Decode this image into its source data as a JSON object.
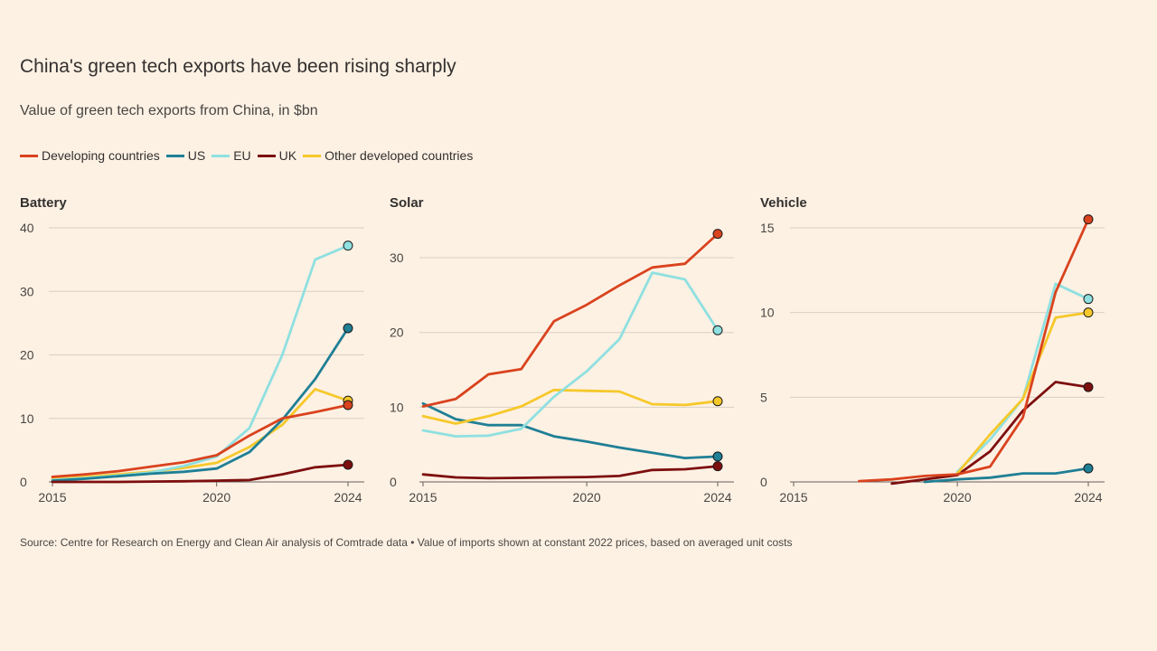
{
  "title": "China's green tech exports have been rising sharply",
  "subtitle": "Value of green tech exports from China, in $bn",
  "source": "Source: Centre for Research on Energy and Clean Air analysis of Comtrade data • Value of imports shown at constant 2022 prices, based on averaged unit costs",
  "legend": [
    {
      "name": "Developing countries",
      "color": "#d9431e"
    },
    {
      "name": "US",
      "color": "#1f7f95"
    },
    {
      "name": "EU",
      "color": "#8fe0e0"
    },
    {
      "name": "UK",
      "color": "#7d0f0f"
    },
    {
      "name": "Other developed countries",
      "color": "#f6c82a"
    }
  ],
  "chart_data": [
    {
      "type": "line",
      "title": "Battery",
      "xlim": [
        2015,
        2024
      ],
      "ylim": [
        0,
        40
      ],
      "yticks": [
        0,
        10,
        20,
        30,
        40
      ],
      "xticks": [
        2015,
        2020,
        2024
      ],
      "series": [
        {
          "name": "Other developed countries",
          "color": "#f6c82a",
          "x": [
            2015,
            2016,
            2017,
            2018,
            2019,
            2020,
            2021,
            2022,
            2023,
            2024
          ],
          "values": [
            0.5,
            0.8,
            1.2,
            1.6,
            2.2,
            3.0,
            5.5,
            9.0,
            14.6,
            12.8
          ]
        },
        {
          "name": "EU",
          "color": "#8fe0e0",
          "x": [
            2015,
            2016,
            2017,
            2018,
            2019,
            2020,
            2021,
            2022,
            2023,
            2024
          ],
          "values": [
            0.3,
            0.6,
            1.0,
            1.5,
            2.5,
            4.0,
            8.5,
            20.0,
            35.0,
            37.2
          ]
        },
        {
          "name": "US",
          "color": "#1f7f95",
          "x": [
            2015,
            2016,
            2017,
            2018,
            2019,
            2020,
            2021,
            2022,
            2023,
            2024
          ],
          "values": [
            0.2,
            0.5,
            0.9,
            1.3,
            1.6,
            2.1,
            4.7,
            9.8,
            16.2,
            24.2
          ]
        },
        {
          "name": "UK",
          "color": "#7d0f0f",
          "x": [
            2015,
            2016,
            2017,
            2018,
            2019,
            2020,
            2021,
            2022,
            2023,
            2024
          ],
          "values": [
            0.0,
            0.0,
            0.0,
            0.05,
            0.1,
            0.2,
            0.3,
            1.2,
            2.3,
            2.7
          ]
        },
        {
          "name": "Developing countries",
          "color": "#d9431e",
          "x": [
            2015,
            2016,
            2017,
            2018,
            2019,
            2020,
            2021,
            2022,
            2023,
            2024
          ],
          "values": [
            0.8,
            1.2,
            1.7,
            2.4,
            3.1,
            4.2,
            7.3,
            10.0,
            11.0,
            12.1
          ]
        }
      ]
    },
    {
      "type": "line",
      "title": "Solar",
      "xlim": [
        2015,
        2024
      ],
      "ylim": [
        0,
        34
      ],
      "yticks": [
        0,
        10,
        20,
        30
      ],
      "xticks": [
        2015,
        2020,
        2024
      ],
      "series": [
        {
          "name": "UK",
          "color": "#7d0f0f",
          "x": [
            2015,
            2016,
            2017,
            2018,
            2019,
            2020,
            2021,
            2022,
            2023,
            2024
          ],
          "values": [
            1.0,
            0.6,
            0.5,
            0.55,
            0.6,
            0.65,
            0.8,
            1.6,
            1.7,
            2.1
          ]
        },
        {
          "name": "US",
          "color": "#1f7f95",
          "x": [
            2015,
            2016,
            2017,
            2018,
            2019,
            2020,
            2021,
            2022,
            2023,
            2024
          ],
          "values": [
            10.5,
            8.4,
            7.6,
            7.6,
            6.1,
            5.4,
            4.6,
            3.9,
            3.2,
            3.4
          ]
        },
        {
          "name": "Other developed countries",
          "color": "#f6c82a",
          "x": [
            2015,
            2016,
            2017,
            2018,
            2019,
            2020,
            2021,
            2022,
            2023,
            2024
          ],
          "values": [
            8.8,
            7.8,
            8.8,
            10.1,
            12.3,
            12.2,
            12.1,
            10.4,
            10.3,
            10.8
          ]
        },
        {
          "name": "EU",
          "color": "#8fe0e0",
          "x": [
            2015,
            2016,
            2017,
            2018,
            2019,
            2020,
            2021,
            2022,
            2023,
            2024
          ],
          "values": [
            6.9,
            6.1,
            6.2,
            7.1,
            11.4,
            14.8,
            19.1,
            28.0,
            27.1,
            20.3
          ]
        },
        {
          "name": "Developing countries",
          "color": "#d9431e",
          "x": [
            2015,
            2016,
            2017,
            2018,
            2019,
            2020,
            2021,
            2022,
            2023,
            2024
          ],
          "values": [
            10.1,
            11.1,
            14.4,
            15.1,
            21.5,
            23.7,
            26.3,
            28.7,
            29.2,
            33.2
          ]
        }
      ]
    },
    {
      "type": "line",
      "title": "Vehicle",
      "xlim": [
        2015,
        2024
      ],
      "ylim": [
        0,
        15
      ],
      "yticks": [
        0,
        5,
        10,
        15
      ],
      "xticks": [
        2015,
        2020,
        2024
      ],
      "series": [
        {
          "name": "US",
          "color": "#1f7f95",
          "x": [
            2019,
            2020,
            2021,
            2022,
            2023,
            2024
          ],
          "values": [
            0.0,
            0.15,
            0.25,
            0.5,
            0.5,
            0.8
          ]
        },
        {
          "name": "UK",
          "color": "#7d0f0f",
          "x": [
            2018,
            2019,
            2020,
            2021,
            2022,
            2023,
            2024
          ],
          "values": [
            -0.1,
            0.15,
            0.4,
            1.8,
            4.2,
            5.9,
            5.6
          ]
        },
        {
          "name": "EU",
          "color": "#8fe0e0",
          "x": [
            2020,
            2021,
            2022,
            2023,
            2024
          ],
          "values": [
            0.6,
            2.5,
            4.9,
            11.7,
            10.8
          ]
        },
        {
          "name": "Other developed countries",
          "color": "#f6c82a",
          "x": [
            2020,
            2021,
            2022,
            2023,
            2024
          ],
          "values": [
            0.5,
            2.8,
            4.9,
            9.7,
            10.0
          ]
        },
        {
          "name": "Developing countries",
          "color": "#d9431e",
          "x": [
            2017,
            2018,
            2019,
            2020,
            2021,
            2022,
            2023,
            2024
          ],
          "values": [
            0.05,
            0.15,
            0.35,
            0.45,
            0.9,
            3.8,
            11.2,
            15.5
          ]
        }
      ]
    }
  ]
}
